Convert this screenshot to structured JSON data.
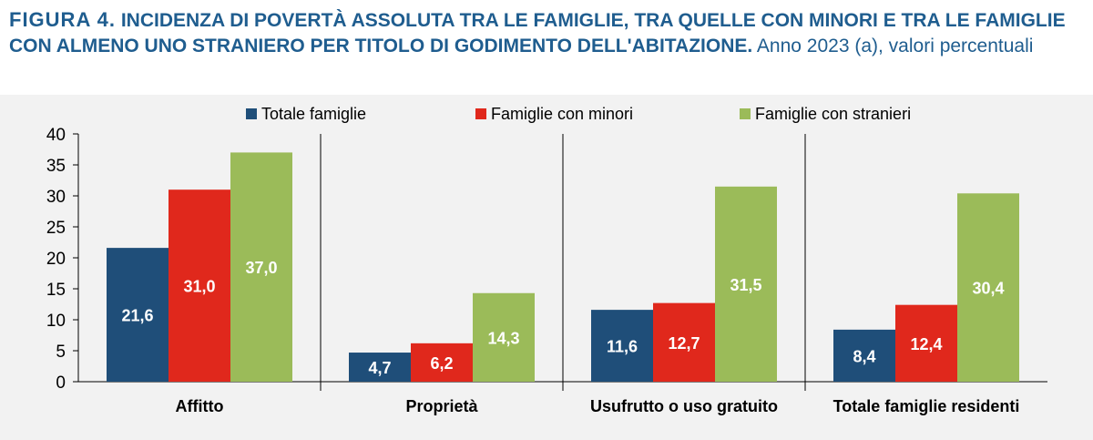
{
  "header": {
    "figure_label": "FIGURA 4.",
    "title": "INCIDENZA DI POVERTÀ ASSOLUTA TRA LE FAMIGLIE, TRA QUELLE CON MINORI E TRA LE FAMIGLIE CON ALMENO UNO STRANIERO PER TITOLO DI GODIMENTO DELL'ABITAZIONE.",
    "subtitle": "Anno 2023 (a), valori percentuali"
  },
  "chart_data": {
    "type": "bar",
    "title": "INCIDENZA DI POVERTÀ ASSOLUTA TRA LE FAMIGLIE, TRA QUELLE CON MINORI E TRA LE FAMIGLIE CON ALMENO UNO STRANIERO PER TITOLO DI GODIMENTO DELL'ABITAZIONE.",
    "subtitle": "Anno 2023 (a), valori percentuali",
    "categories": [
      "Affitto",
      "Proprietà",
      "Usufrutto o uso gratuito",
      "Totale famiglie residenti"
    ],
    "series": [
      {
        "name": "Totale famiglie",
        "color": "#1f4e79",
        "values": [
          21.6,
          4.7,
          11.6,
          8.4
        ],
        "labels": [
          "21,6",
          "4,7",
          "11,6",
          "8,4"
        ]
      },
      {
        "name": "Famiglie con minori",
        "color": "#e0281c",
        "values": [
          31.0,
          6.2,
          12.7,
          12.4
        ],
        "labels": [
          "31,0",
          "6,2",
          "12,7",
          "12,4"
        ]
      },
      {
        "name": "Famiglie con stranieri",
        "color": "#9bbb59",
        "values": [
          37.0,
          14.3,
          31.5,
          30.4
        ],
        "labels": [
          "37,0",
          "14,3",
          "31,5",
          "30,4"
        ]
      }
    ],
    "yticks": [
      "0",
      "5",
      "10",
      "15",
      "20",
      "25",
      "30",
      "35",
      "40"
    ],
    "ylim": [
      0,
      40
    ],
    "xlabel": "",
    "ylabel": "",
    "grid": "vertical separators between categories",
    "legend_position": "top"
  }
}
